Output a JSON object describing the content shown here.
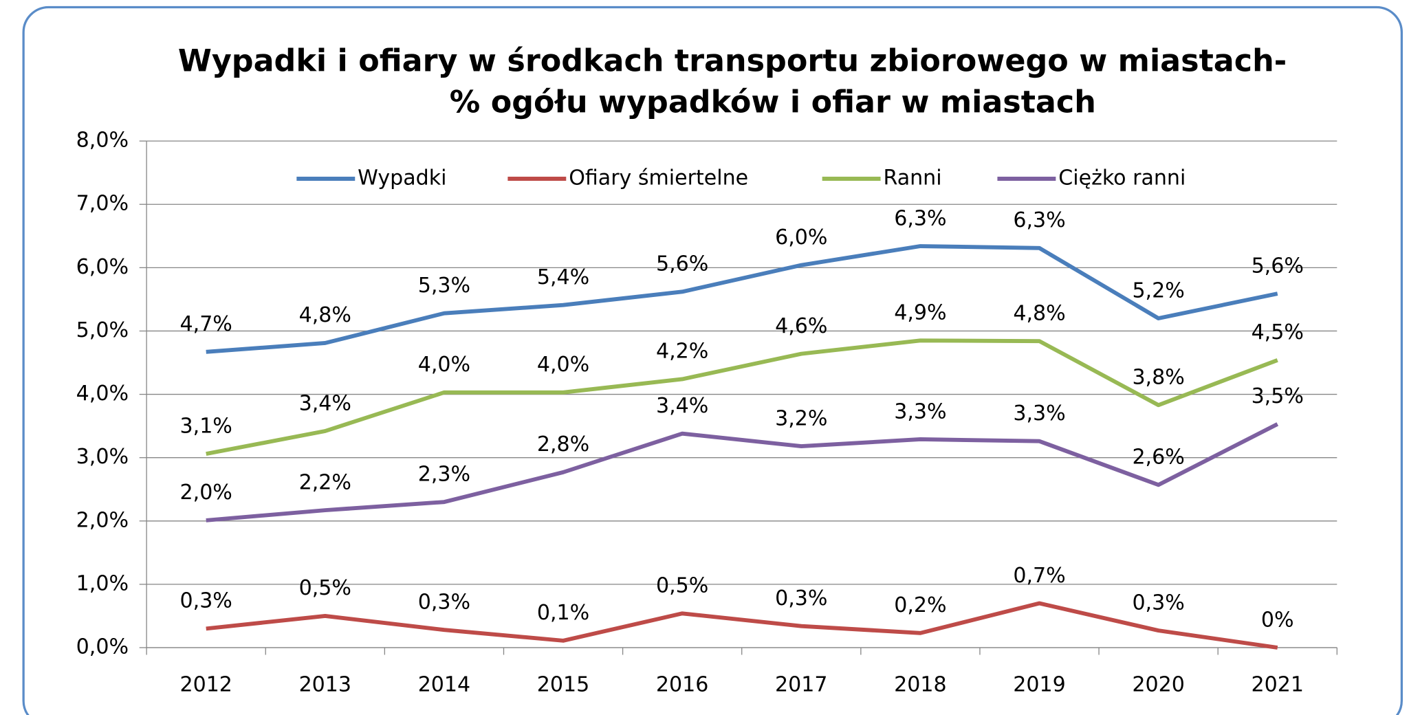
{
  "chart_data": {
    "type": "line",
    "title": [
      "Wypadki i ofiary w środkach transportu zbiorowego w miastach-",
      "%  ogółu wypadków i ofiar w miastach"
    ],
    "categories": [
      "2012",
      "2013",
      "2014",
      "2015",
      "2016",
      "2017",
      "2018",
      "2019",
      "2020",
      "2021"
    ],
    "ylim": [
      0,
      8
    ],
    "yticks": [
      {
        "value": 0,
        "label": "0,0%"
      },
      {
        "value": 1,
        "label": "1,0%"
      },
      {
        "value": 2,
        "label": "2,0%"
      },
      {
        "value": 3,
        "label": "3,0%"
      },
      {
        "value": 4,
        "label": "4,0%"
      },
      {
        "value": 5,
        "label": "5,0%"
      },
      {
        "value": 6,
        "label": "6,0%"
      },
      {
        "value": 7,
        "label": "7,0%"
      },
      {
        "value": 8,
        "label": "8,0%"
      }
    ],
    "grid": true,
    "legend": "top",
    "series": [
      {
        "name": "Wypadki",
        "color": "#4a7ebb",
        "values": [
          4.67,
          4.81,
          5.28,
          5.41,
          5.62,
          6.04,
          6.34,
          6.31,
          5.2,
          5.59
        ],
        "value_labels": [
          "4,7%",
          "4,8%",
          "5,3%",
          "5,4%",
          "5,6%",
          "6,0%",
          "6,3%",
          "6,3%",
          "5,2%",
          "5,6%"
        ]
      },
      {
        "name": "Ofiary śmiertelne",
        "color": "#be4b48",
        "values": [
          0.3,
          0.5,
          0.28,
          0.11,
          0.54,
          0.34,
          0.23,
          0.7,
          0.27,
          0
        ],
        "value_labels": [
          "0,3%",
          "0,5%",
          "0,3%",
          "0,1%",
          "0,5%",
          "0,3%",
          "0,2%",
          "0,7%",
          "0,3%",
          "0%"
        ]
      },
      {
        "name": "Ranni",
        "color": "#98b954",
        "values": [
          3.06,
          3.42,
          4.03,
          4.03,
          4.24,
          4.64,
          4.85,
          4.84,
          3.83,
          4.54
        ],
        "value_labels": [
          "3,1%",
          "3,4%",
          "4,0%",
          "4,0%",
          "4,2%",
          "4,6%",
          "4,9%",
          "4,8%",
          "3,8%",
          "4,5%"
        ]
      },
      {
        "name": "Ciężko ranni",
        "color": "#7d60a0",
        "values": [
          2.01,
          2.17,
          2.3,
          2.77,
          3.38,
          3.18,
          3.29,
          3.26,
          2.57,
          3.53
        ],
        "value_labels": [
          "2,0%",
          "2,2%",
          "2,3%",
          "2,8%",
          "3,4%",
          "3,2%",
          "3,3%",
          "3,3%",
          "2,6%",
          "3,5%"
        ]
      }
    ]
  }
}
